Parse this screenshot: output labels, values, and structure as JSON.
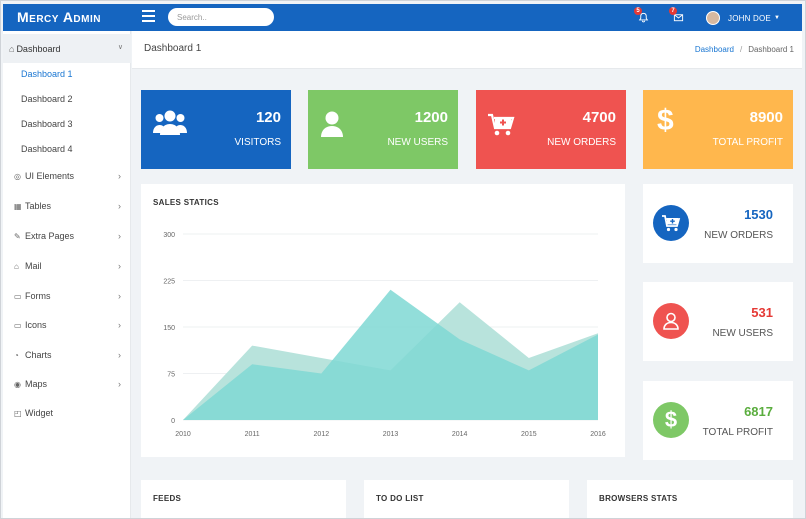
{
  "brand": "Mercy Admin",
  "search": {
    "placeholder": "Search.."
  },
  "notifications": [
    {
      "count": "5",
      "icon": "bell-icon"
    },
    {
      "count": "7",
      "icon": "mail-icon"
    }
  ],
  "user": {
    "name": "JOHN DOE"
  },
  "sidebar": {
    "header": "Dashboard",
    "subitems": [
      "Dashboard 1",
      "Dashboard 2",
      "Dashboard 3",
      "Dashboard 4"
    ],
    "items": [
      {
        "label": "UI Elements",
        "icon": "layers-icon"
      },
      {
        "label": "Tables",
        "icon": "grid-icon"
      },
      {
        "label": "Extra Pages",
        "icon": "edit-icon"
      },
      {
        "label": "Mail",
        "icon": "mail-icon"
      },
      {
        "label": "Forms",
        "icon": "monitor-icon"
      },
      {
        "label": "Icons",
        "icon": "folder-icon"
      },
      {
        "label": "Charts",
        "icon": "clock-icon"
      },
      {
        "label": "Maps",
        "icon": "pin-icon"
      },
      {
        "label": "Widget",
        "icon": "widget-icon"
      }
    ]
  },
  "page": {
    "title": "Dashboard 1",
    "breadcrumb": [
      "Dashboard",
      "Dashboard 1"
    ]
  },
  "stats": [
    {
      "value": "120",
      "label": "VISITORS",
      "color": "#1565c0",
      "icon": "users-icon"
    },
    {
      "value": "1200",
      "label": "NEW USERS",
      "color": "#7ec866",
      "icon": "user-icon"
    },
    {
      "value": "4700",
      "label": "NEW ORDERS",
      "color": "#ef5350",
      "icon": "cart-icon"
    },
    {
      "value": "8900",
      "label": "TOTAL PROFIT",
      "color": "#ffb74d",
      "icon": "dollar-icon"
    }
  ],
  "side_stats": [
    {
      "value": "1530",
      "label": "NEW ORDERS",
      "color": "#1565c0",
      "icon": "cart-icon"
    },
    {
      "value": "531",
      "label": "NEW USERS",
      "color": "#ef5350",
      "icon": "user-icon"
    },
    {
      "value": "6817",
      "label": "TOTAL PROFIT",
      "color": "#7ec866",
      "icon": "dollar-icon"
    }
  ],
  "bottom_cards": [
    "FEEDS",
    "TO DO LIST",
    "BROWSERS STATS"
  ],
  "chart_data": {
    "type": "area",
    "title": "SALES STATICS",
    "x": [
      2010,
      2011,
      2012,
      2013,
      2014,
      2015,
      2016
    ],
    "yticks": [
      0,
      75,
      150,
      225,
      300
    ],
    "ylim": [
      0,
      300
    ],
    "grid": true,
    "series": [
      {
        "values": [
          0,
          120,
          100,
          80,
          190,
          100,
          140
        ],
        "color": "#b8e3dc"
      },
      {
        "values": [
          0,
          90,
          75,
          210,
          130,
          80,
          138
        ],
        "color": "#7fd8d3"
      }
    ]
  }
}
